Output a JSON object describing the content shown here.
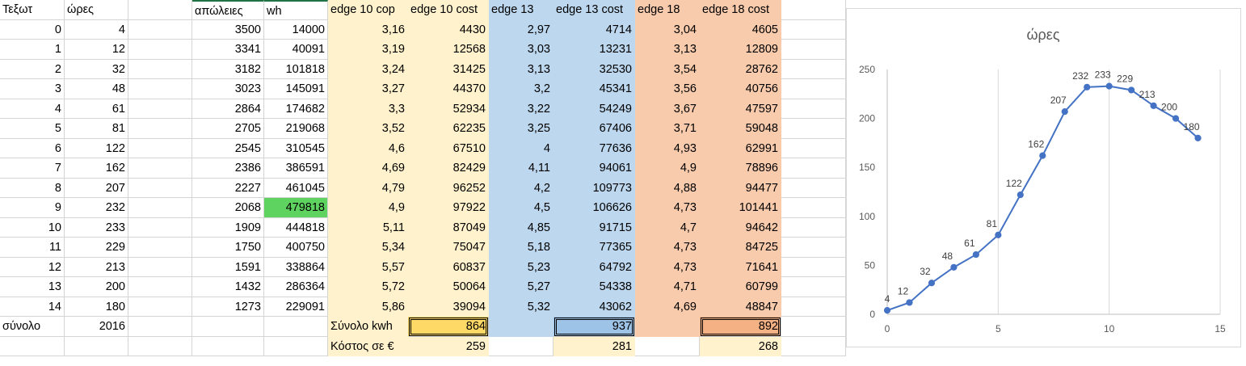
{
  "headers": [
    "Τεξωτ",
    "ώρες",
    "",
    "απώλειες",
    "wh",
    "edge 10 cop",
    "edge 10 cost",
    "edge 13",
    "edge 13 cost",
    "edge 18",
    "edge 18 cost"
  ],
  "rows": [
    [
      "0",
      "4",
      "",
      "3500",
      "14000",
      "3,16",
      "4430",
      "2,97",
      "4714",
      "3,04",
      "4605"
    ],
    [
      "1",
      "12",
      "",
      "3341",
      "40091",
      "3,19",
      "12568",
      "3,03",
      "13231",
      "3,13",
      "12809"
    ],
    [
      "2",
      "32",
      "",
      "3182",
      "101818",
      "3,24",
      "31425",
      "3,13",
      "32530",
      "3,54",
      "28762"
    ],
    [
      "3",
      "48",
      "",
      "3023",
      "145091",
      "3,27",
      "44370",
      "3,2",
      "45341",
      "3,56",
      "40756"
    ],
    [
      "4",
      "61",
      "",
      "2864",
      "174682",
      "3,3",
      "52934",
      "3,22",
      "54249",
      "3,67",
      "47597"
    ],
    [
      "5",
      "81",
      "",
      "2705",
      "219068",
      "3,52",
      "62235",
      "3,25",
      "67406",
      "3,71",
      "59048"
    ],
    [
      "6",
      "122",
      "",
      "2545",
      "310545",
      "4,6",
      "67510",
      "4",
      "77636",
      "4,93",
      "62991"
    ],
    [
      "7",
      "162",
      "",
      "2386",
      "386591",
      "4,69",
      "82429",
      "4,11",
      "94061",
      "4,9",
      "78896"
    ],
    [
      "8",
      "207",
      "",
      "2227",
      "461045",
      "4,79",
      "96252",
      "4,2",
      "109773",
      "4,88",
      "94477"
    ],
    [
      "9",
      "232",
      "",
      "2068",
      "479818",
      "4,9",
      "97922",
      "4,5",
      "106626",
      "4,73",
      "101441"
    ],
    [
      "10",
      "233",
      "",
      "1909",
      "444818",
      "5,11",
      "87049",
      "4,85",
      "91715",
      "4,7",
      "94642"
    ],
    [
      "11",
      "229",
      "",
      "1750",
      "400750",
      "5,34",
      "75047",
      "5,18",
      "77365",
      "4,73",
      "84725"
    ],
    [
      "12",
      "213",
      "",
      "1591",
      "338864",
      "5,57",
      "60837",
      "5,23",
      "64792",
      "4,73",
      "71641"
    ],
    [
      "13",
      "200",
      "",
      "1432",
      "286364",
      "5,72",
      "50064",
      "5,27",
      "54338",
      "4,71",
      "60799"
    ],
    [
      "14",
      "180",
      "",
      "1273",
      "229091",
      "5,86",
      "39094",
      "5,32",
      "43062",
      "4,69",
      "48847"
    ]
  ],
  "summary": {
    "total_label": "σύνολο",
    "total_value": "2016",
    "kwh_label": "Σύνολο kwh",
    "kwh_edge10": "864",
    "kwh_edge13": "937",
    "kwh_edge18": "892",
    "cost_label": "Κόστος σε €",
    "cost_edge10": "259",
    "cost_edge13": "281",
    "cost_edge18": "268"
  },
  "colors": {
    "edge10_fill": "#fff2cc",
    "edge13_fill": "#bdd7ee",
    "edge18_fill": "#f8cbad",
    "highlight_cell": "#5fd35f",
    "series_line": "#4472c4"
  },
  "chart_data": {
    "type": "line",
    "title": "ώρες",
    "x": [
      0,
      1,
      2,
      3,
      4,
      5,
      6,
      7,
      8,
      9,
      10,
      11,
      12,
      13,
      14
    ],
    "series": [
      {
        "values": [
          4,
          12,
          32,
          48,
          61,
          81,
          122,
          162,
          207,
          232,
          233,
          229,
          213,
          200,
          180
        ]
      }
    ],
    "xlim": [
      0,
      15
    ],
    "ylim": [
      0,
      250
    ],
    "xticks": [
      0,
      5,
      10,
      15
    ],
    "yticks": [
      0,
      50,
      100,
      150,
      200,
      250
    ],
    "data_labels": true,
    "grid": "vertical",
    "markers": true
  }
}
